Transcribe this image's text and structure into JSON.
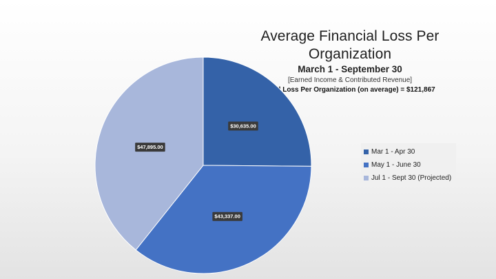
{
  "slide": {
    "title": "Average Financial Loss Per Organization",
    "subtitle": "March 1 - September 30",
    "note": "[Earned Income & Contributed Revenue]",
    "total": "Total Loss Per Organization (on average) = $121,867"
  },
  "chart_data": {
    "type": "pie",
    "categories": [
      "Mar 1 - Apr 30",
      "May 1 - June 30",
      "Jul 1 - Sept 30 (Projected)"
    ],
    "values": [
      30635,
      43337,
      47895
    ],
    "data_labels": [
      "$30,635.00",
      "$43,337.00",
      "$47,895.00"
    ],
    "colors": [
      "#3462a8",
      "#4472c4",
      "#a8b7db"
    ],
    "start_angle_deg": 0,
    "direction": "clockwise",
    "legend_position": "right"
  }
}
